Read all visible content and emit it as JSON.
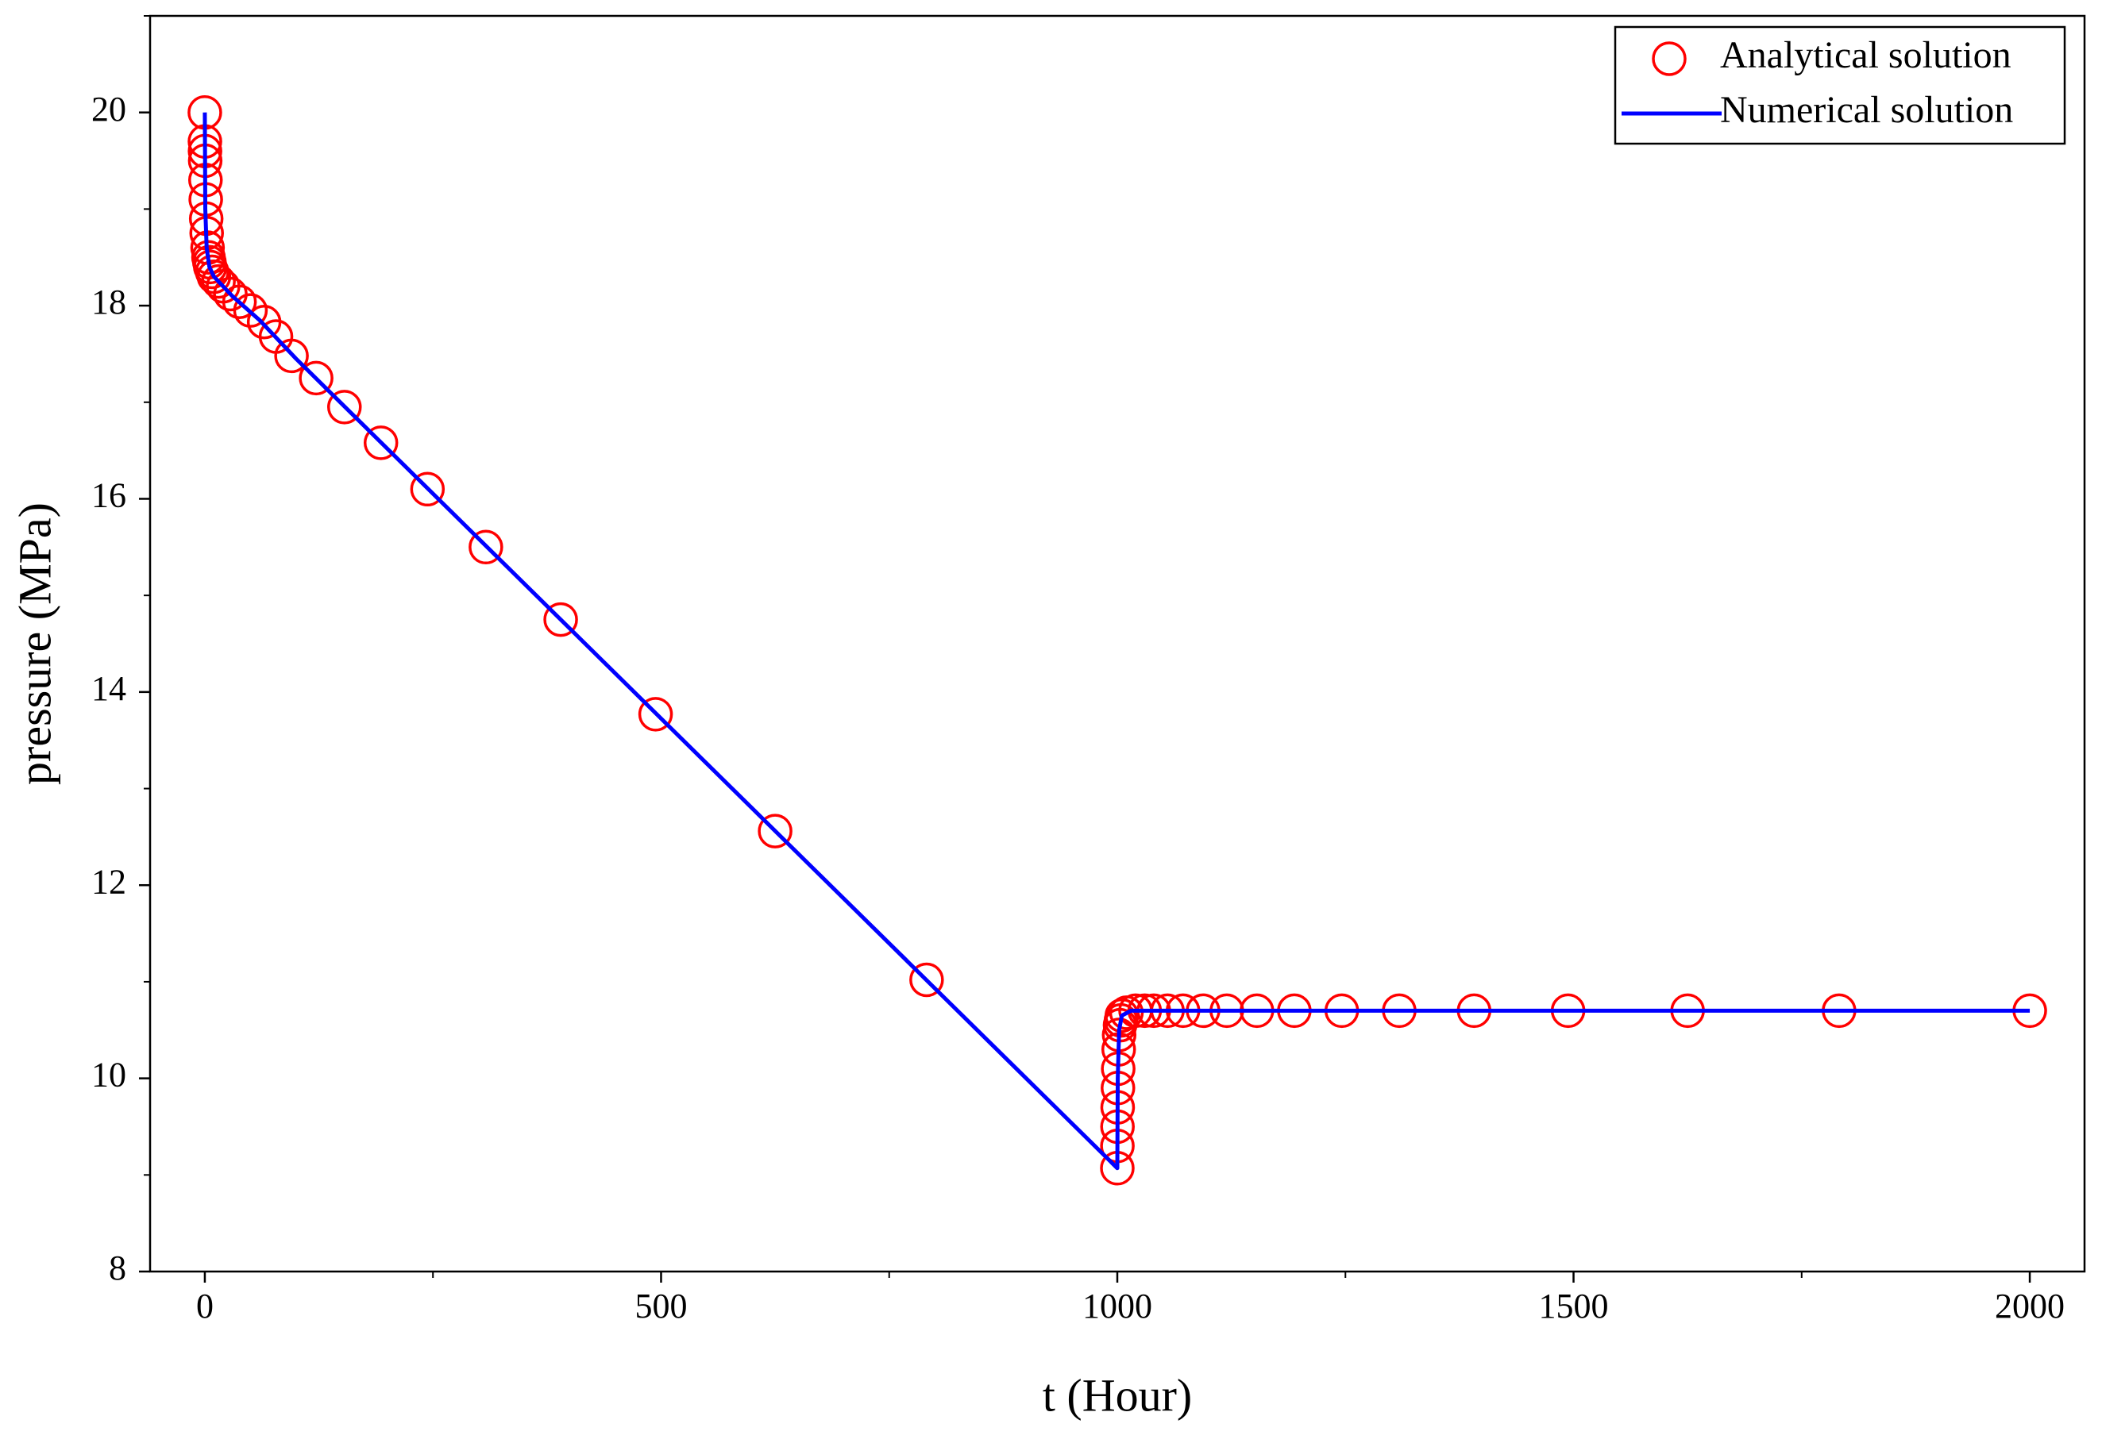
{
  "chart_data": {
    "type": "line",
    "xlabel": "t (Hour)",
    "ylabel": "pressure (MPa)",
    "xlim": [
      -60,
      2060
    ],
    "ylim": [
      8,
      21
    ],
    "xticks": [
      0,
      500,
      1000,
      1500,
      2000
    ],
    "yticks": [
      8,
      10,
      12,
      14,
      16,
      18,
      20
    ],
    "xminorticks": [
      250,
      750,
      1250,
      1750
    ],
    "yminorticks": [
      9,
      11,
      13,
      15,
      17,
      19,
      21
    ],
    "legend": "upper right",
    "series": [
      {
        "name": "Analytical solution",
        "color": "#ff0000",
        "marker": "circle",
        "x": [
          0,
          0.1,
          0.2,
          0.4,
          0.7,
          1,
          1.5,
          2,
          3,
          4,
          5,
          6,
          8,
          10,
          15,
          20,
          28,
          38,
          50,
          65,
          78,
          95,
          122,
          153,
          193,
          244,
          308,
          390,
          494,
          625,
          791,
          1000,
          1000.1,
          1000.2,
          1000.4,
          1000.7,
          1001,
          1001.5,
          1002,
          1003,
          1004,
          1005,
          1010,
          1020,
          1030,
          1040,
          1055,
          1072,
          1094,
          1120,
          1153,
          1194,
          1246,
          1309,
          1391,
          1494,
          1625,
          1791,
          2000
        ],
        "values": [
          20,
          19.7,
          19.6,
          19.5,
          19.3,
          19.1,
          18.9,
          18.75,
          18.6,
          18.5,
          18.45,
          18.4,
          18.35,
          18.3,
          18.25,
          18.2,
          18.12,
          18.04,
          17.95,
          17.83,
          17.68,
          17.48,
          17.25,
          16.95,
          16.58,
          16.1,
          15.5,
          14.75,
          13.77,
          12.56,
          11.02,
          9.07,
          9.3,
          9.5,
          9.7,
          9.9,
          10.1,
          10.3,
          10.45,
          10.55,
          10.6,
          10.65,
          10.68,
          10.7,
          10.7,
          10.7,
          10.7,
          10.7,
          10.7,
          10.7,
          10.7,
          10.7,
          10.7,
          10.7,
          10.7,
          10.7,
          10.7,
          10.7,
          10.7
        ]
      },
      {
        "name": "Numerical solution",
        "color": "#0000ff",
        "x": [
          0,
          0.5,
          2,
          5,
          10,
          30,
          60,
          100,
          1000,
          1000.5,
          1002,
          1005,
          1015,
          2000
        ],
        "values": [
          20,
          19,
          18.6,
          18.4,
          18.3,
          18.1,
          17.85,
          17.45,
          9.07,
          10,
          10.5,
          10.65,
          10.7,
          10.7
        ]
      }
    ]
  }
}
